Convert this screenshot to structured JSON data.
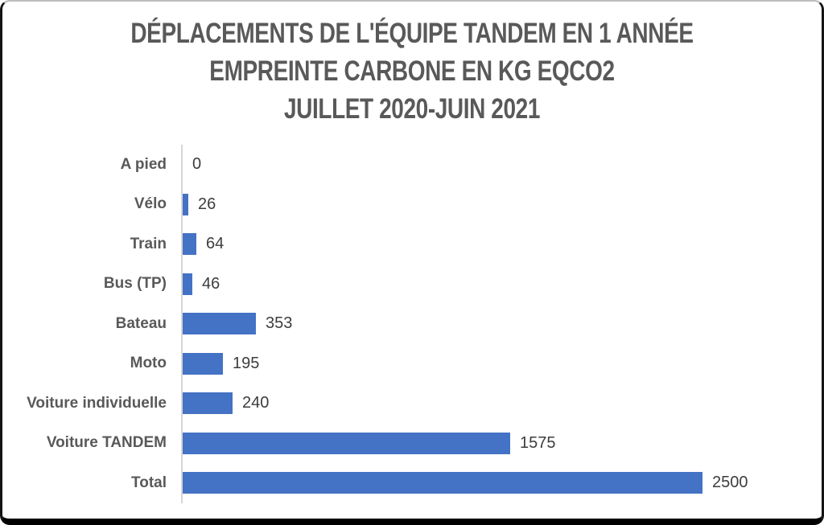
{
  "title": {
    "line1": "DÉPLACEMENTS DE L'ÉQUIPE TANDEM EN 1 ANNÉE",
    "line2": "EMPREINTE CARBONE EN KG EQCO2",
    "line3": "JUILLET 2020-JUIN 2021"
  },
  "chart_data": {
    "type": "bar",
    "orientation": "horizontal",
    "title": "DÉPLACEMENTS DE L'ÉQUIPE TANDEM EN 1 ANNÉE EMPREINTE CARBONE EN KG EQCO2 JUILLET 2020-JUIN 2021",
    "categories": [
      "A pied",
      "Vélo",
      "Train",
      "Bus (TP)",
      "Bateau",
      "Moto",
      "Voiture individuelle",
      "Voiture TANDEM",
      "Total"
    ],
    "values": [
      0,
      26,
      64,
      46,
      353,
      195,
      240,
      1575,
      2500
    ],
    "data_labels": [
      "0",
      "26",
      "64",
      "46",
      "353",
      "195",
      "240",
      "1575",
      "2500"
    ],
    "xlabel": "",
    "ylabel": "",
    "xlim": [
      0,
      2500
    ],
    "grid": false,
    "legend": false,
    "bar_color": "#4472c4",
    "category_label_color": "#595959",
    "value_label_color": "#3d3d3d",
    "axis_line_color": "#d6d6d6",
    "title_color": "#595959"
  }
}
